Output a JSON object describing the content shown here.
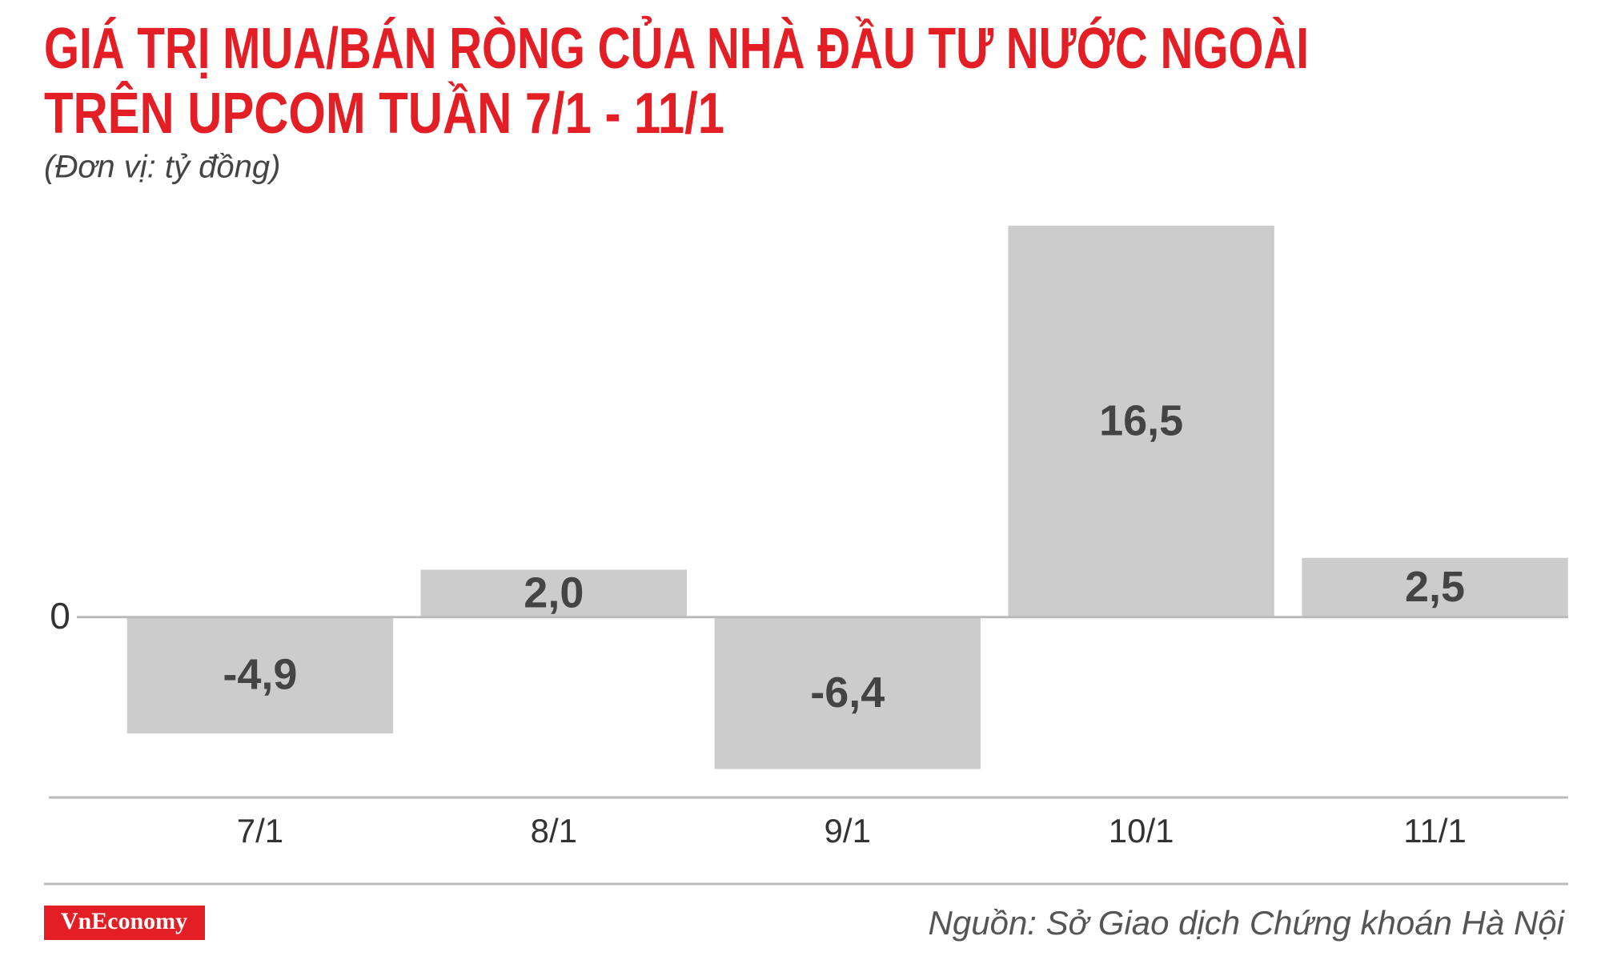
{
  "chart_data": {
    "type": "bar",
    "title": [
      "GIÁ TRỊ MUA/BÁN RÒNG CỦA NHÀ ĐẦU TƯ NƯỚC NGOÀI",
      "TRÊN UPCOM TUẦN 7/1 - 11/1"
    ],
    "subtitle": "(Đơn vị: tỷ đồng)",
    "categories": [
      "7/1",
      "8/1",
      "9/1",
      "10/1",
      "11/1"
    ],
    "values": [
      -4.9,
      2.0,
      -6.4,
      16.5,
      2.5
    ],
    "value_labels": [
      "-4,9",
      "2,0",
      "-6,4",
      "16,5",
      "2,5"
    ],
    "color": "#cccccc",
    "ylim": [
      -7.6,
      17
    ],
    "yticks": [
      0
    ],
    "source": "Nguồn: Sở Giao dịch Chứng khoán Hà Nội",
    "brand": "VnEconomy"
  }
}
